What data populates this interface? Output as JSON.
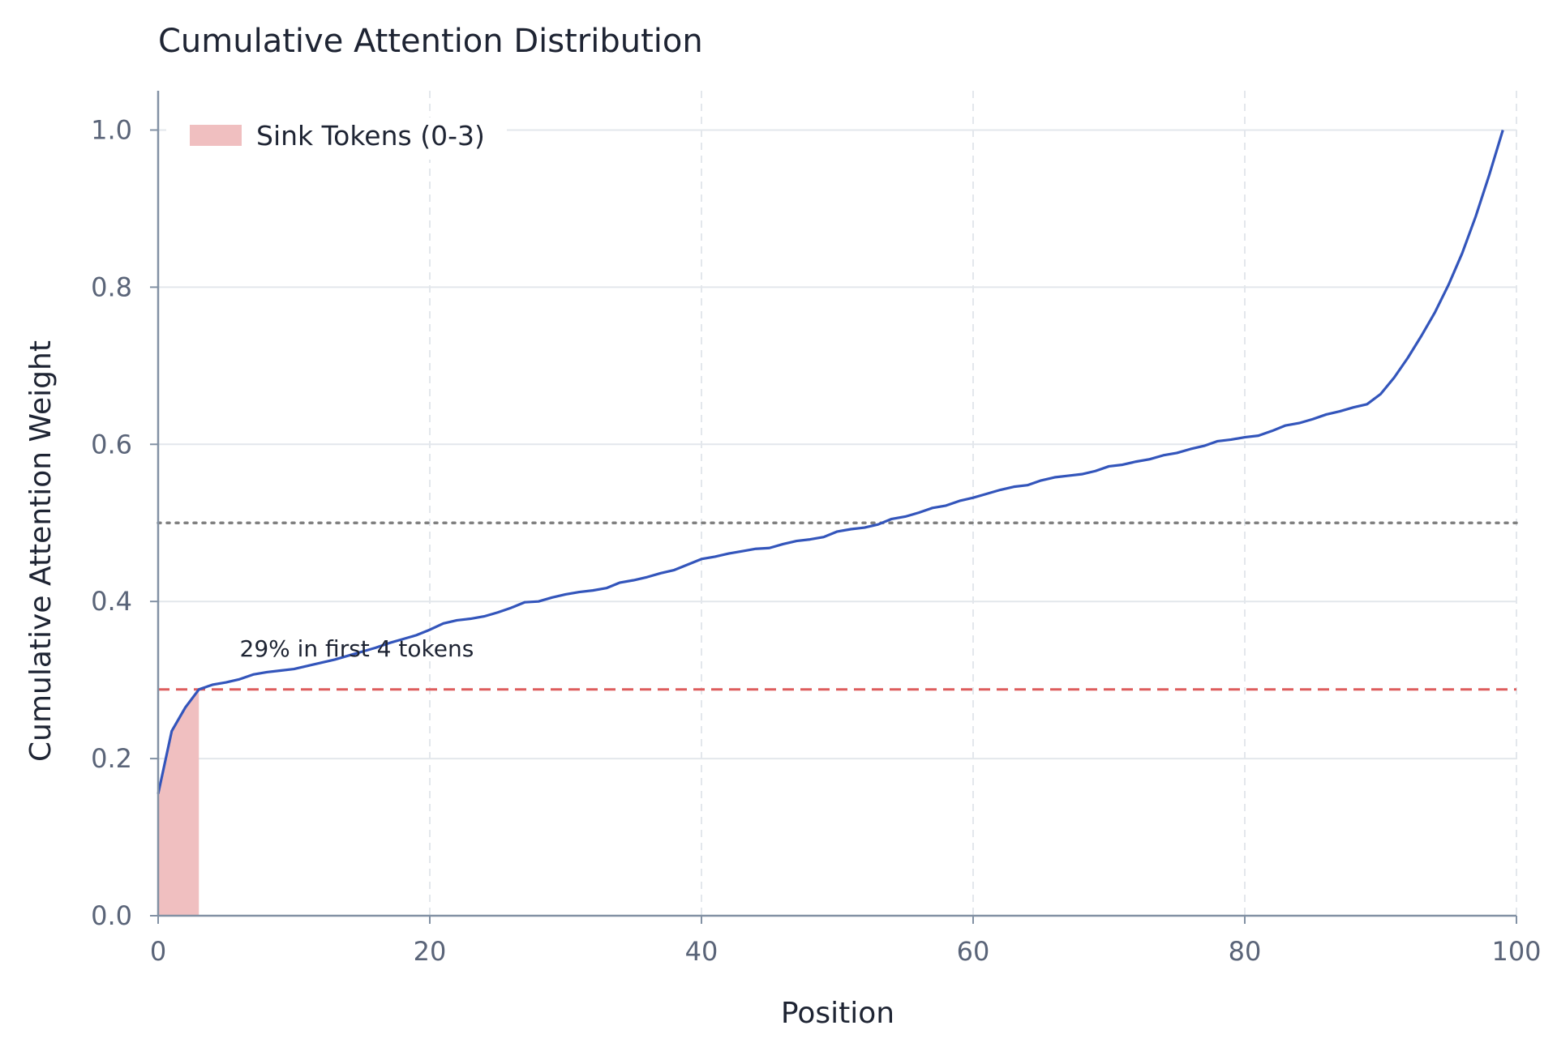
{
  "chart_data": {
    "type": "line",
    "title": "Cumulative Attention Distribution",
    "xlabel": "Position",
    "ylabel": "Cumulative Attention Weight",
    "xlim": [
      0,
      100
    ],
    "ylim": [
      0,
      1.05
    ],
    "xticks": [
      0,
      20,
      40,
      60,
      80,
      100
    ],
    "yticks": [
      0.0,
      0.2,
      0.4,
      0.6,
      0.8,
      1.0
    ],
    "xtick_labels": [
      "0",
      "20",
      "40",
      "60",
      "80",
      "100"
    ],
    "ytick_labels": [
      "0.0",
      "0.2",
      "0.4",
      "0.6",
      "0.8",
      "1.0"
    ],
    "grid": true,
    "legend_position": "top-left",
    "legend": [
      {
        "label": "Sink Tokens (0-3)",
        "color": "#f0bfc0"
      }
    ],
    "series": [
      {
        "color": "#3355bb",
        "x": [
          0,
          1,
          2,
          3,
          4,
          5,
          6,
          7,
          8,
          9,
          10,
          11,
          12,
          13,
          14,
          15,
          16,
          17,
          18,
          19,
          20,
          21,
          22,
          23,
          24,
          25,
          26,
          27,
          28,
          29,
          30,
          31,
          32,
          33,
          34,
          35,
          36,
          37,
          38,
          39,
          40,
          41,
          42,
          43,
          44,
          45,
          46,
          47,
          48,
          49,
          50,
          51,
          52,
          53,
          54,
          55,
          56,
          57,
          58,
          59,
          60,
          61,
          62,
          63,
          64,
          65,
          66,
          67,
          68,
          69,
          70,
          71,
          72,
          73,
          74,
          75,
          76,
          77,
          78,
          79,
          80,
          81,
          82,
          83,
          84,
          85,
          86,
          87,
          88,
          89,
          90,
          91,
          92,
          93,
          94,
          95,
          96,
          97,
          98,
          99
        ],
        "y": [
          0.155,
          0.235,
          0.265,
          0.288,
          0.294,
          0.297,
          0.301,
          0.307,
          0.31,
          0.312,
          0.314,
          0.318,
          0.322,
          0.326,
          0.331,
          0.336,
          0.341,
          0.347,
          0.352,
          0.357,
          0.364,
          0.372,
          0.376,
          0.378,
          0.381,
          0.386,
          0.392,
          0.399,
          0.4,
          0.405,
          0.409,
          0.412,
          0.414,
          0.417,
          0.424,
          0.427,
          0.431,
          0.436,
          0.44,
          0.447,
          0.454,
          0.457,
          0.461,
          0.464,
          0.467,
          0.468,
          0.473,
          0.477,
          0.479,
          0.482,
          0.489,
          0.492,
          0.494,
          0.498,
          0.505,
          0.508,
          0.513,
          0.519,
          0.522,
          0.528,
          0.532,
          0.537,
          0.542,
          0.546,
          0.548,
          0.554,
          0.558,
          0.56,
          0.562,
          0.566,
          0.572,
          0.574,
          0.578,
          0.581,
          0.586,
          0.589,
          0.594,
          0.598,
          0.604,
          0.606,
          0.609,
          0.611,
          0.617,
          0.624,
          0.627,
          0.632,
          0.638,
          0.642,
          0.647,
          0.651,
          0.664,
          0.685,
          0.71,
          0.738,
          0.768,
          0.803,
          0.843,
          0.89,
          0.943,
          1.0
        ]
      }
    ],
    "shaded_region": {
      "x_start": 0,
      "x_end": 3,
      "color": "#f0bfc0"
    },
    "reference_lines": [
      {
        "type": "horizontal",
        "y": 0.288,
        "style": "dashed",
        "color": "#dd5c5c"
      },
      {
        "type": "horizontal",
        "y": 0.5,
        "style": "dotted",
        "color": "#808080"
      }
    ],
    "annotations": [
      {
        "text": "29% in first 4 tokens",
        "x": 6,
        "y": 0.33
      }
    ]
  }
}
